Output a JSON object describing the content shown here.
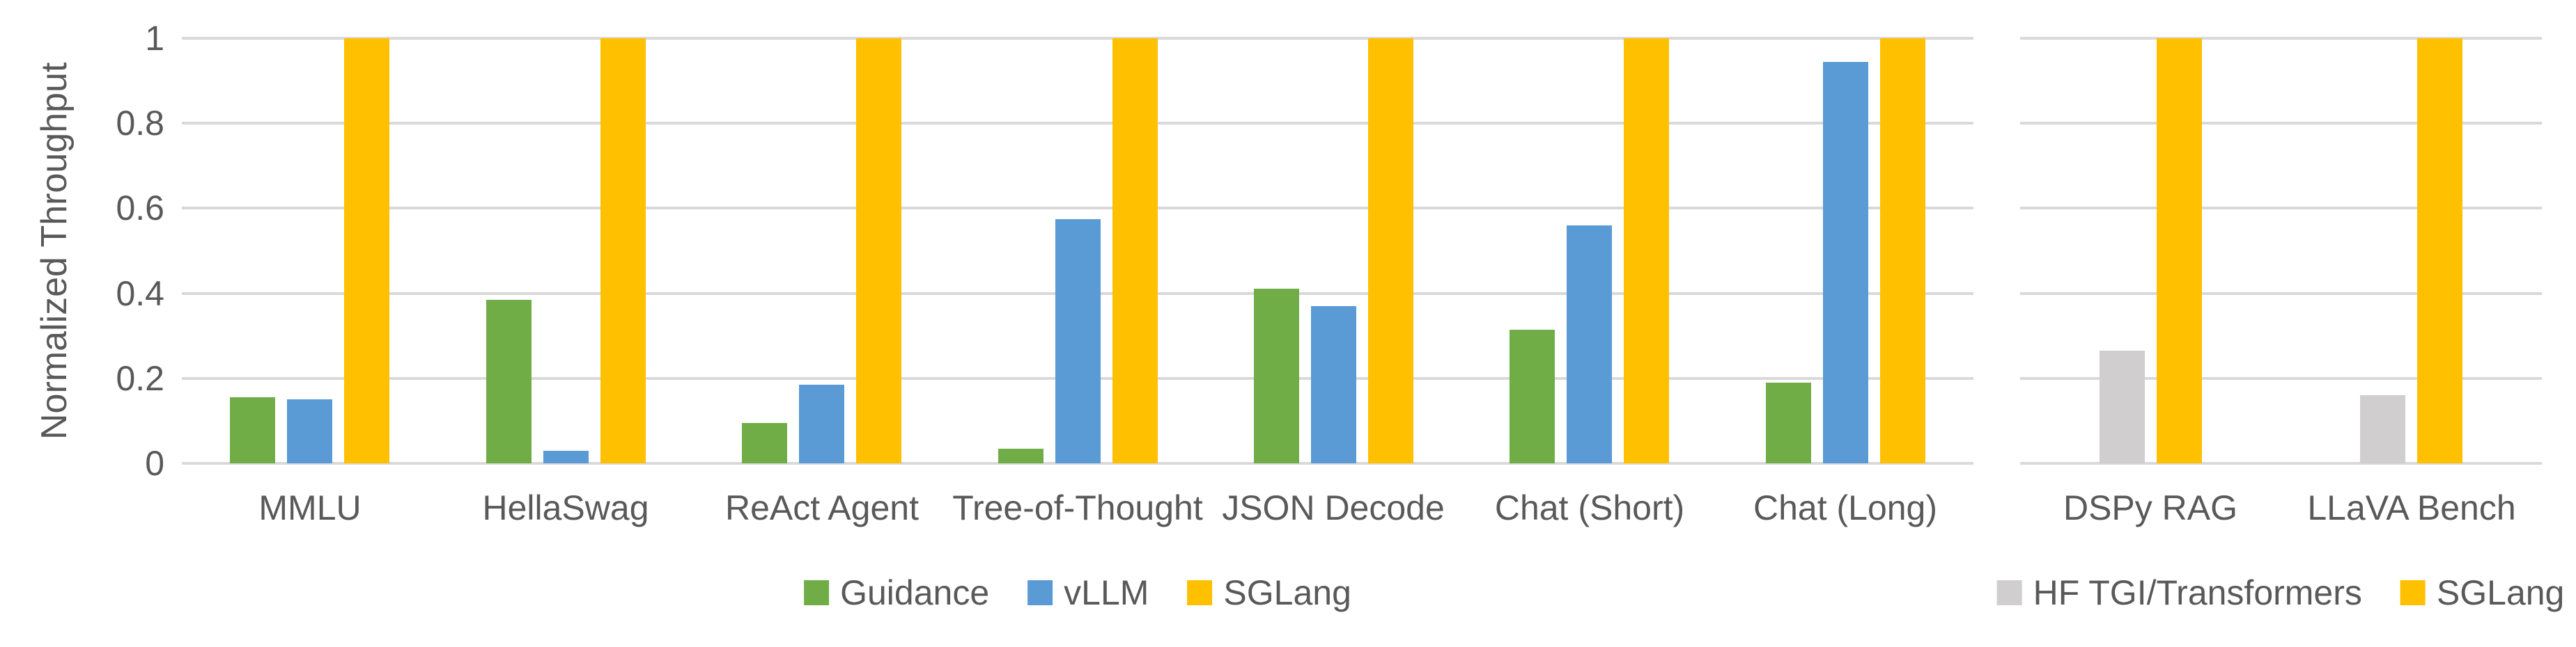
{
  "axis": {
    "ylabel": "Normalized Throughput",
    "y_ticks": [
      {
        "value": 1.0,
        "label": "1"
      },
      {
        "value": 0.8,
        "label": "0.8"
      },
      {
        "value": 0.6,
        "label": "0.6"
      },
      {
        "value": 0.4,
        "label": "0.4"
      },
      {
        "value": 0.2,
        "label": "0.2"
      },
      {
        "value": 0.0,
        "label": "0"
      }
    ]
  },
  "colors": {
    "background": "#FFFFFF",
    "gridline": "#D9D9D9",
    "text": "#595959",
    "guidance_green": "#70AD47",
    "vllm_blue": "#5B9BD5",
    "sglang_gold": "#FFC000",
    "hf_gray": "#D0CECE"
  },
  "chart_data": [
    {
      "type": "bar",
      "title": "",
      "xlabel": "",
      "ylabel": "Normalized Throughput",
      "ylim": [
        0,
        1
      ],
      "grid": true,
      "legend_position": "bottom",
      "categories": [
        "MMLU",
        "HellaSwag",
        "ReAct Agent",
        "Tree-of-Thought",
        "JSON Decode",
        "Chat (Short)",
        "Chat (Long)"
      ],
      "series": [
        {
          "name": "Guidance",
          "color": "#70AD47",
          "values": [
            0.155,
            0.385,
            0.095,
            0.035,
            0.41,
            0.315,
            0.19
          ]
        },
        {
          "name": "vLLM",
          "color": "#5B9BD5",
          "values": [
            0.15,
            0.03,
            0.185,
            0.575,
            0.37,
            0.56,
            0.945
          ]
        },
        {
          "name": "SGLang",
          "color": "#FFC000",
          "values": [
            1,
            1,
            1,
            1,
            1,
            1,
            1
          ]
        }
      ]
    },
    {
      "type": "bar",
      "title": "",
      "xlabel": "",
      "ylabel": "Normalized Throughput",
      "ylim": [
        0,
        1
      ],
      "grid": true,
      "legend_position": "bottom",
      "categories": [
        "DSPy RAG",
        "LLaVA Bench"
      ],
      "series": [
        {
          "name": "HF TGI/Transformers",
          "color": "#D0CECE",
          "values": [
            0.265,
            0.16
          ]
        },
        {
          "name": "SGLang",
          "color": "#FFC000",
          "values": [
            1,
            1
          ]
        }
      ]
    }
  ]
}
